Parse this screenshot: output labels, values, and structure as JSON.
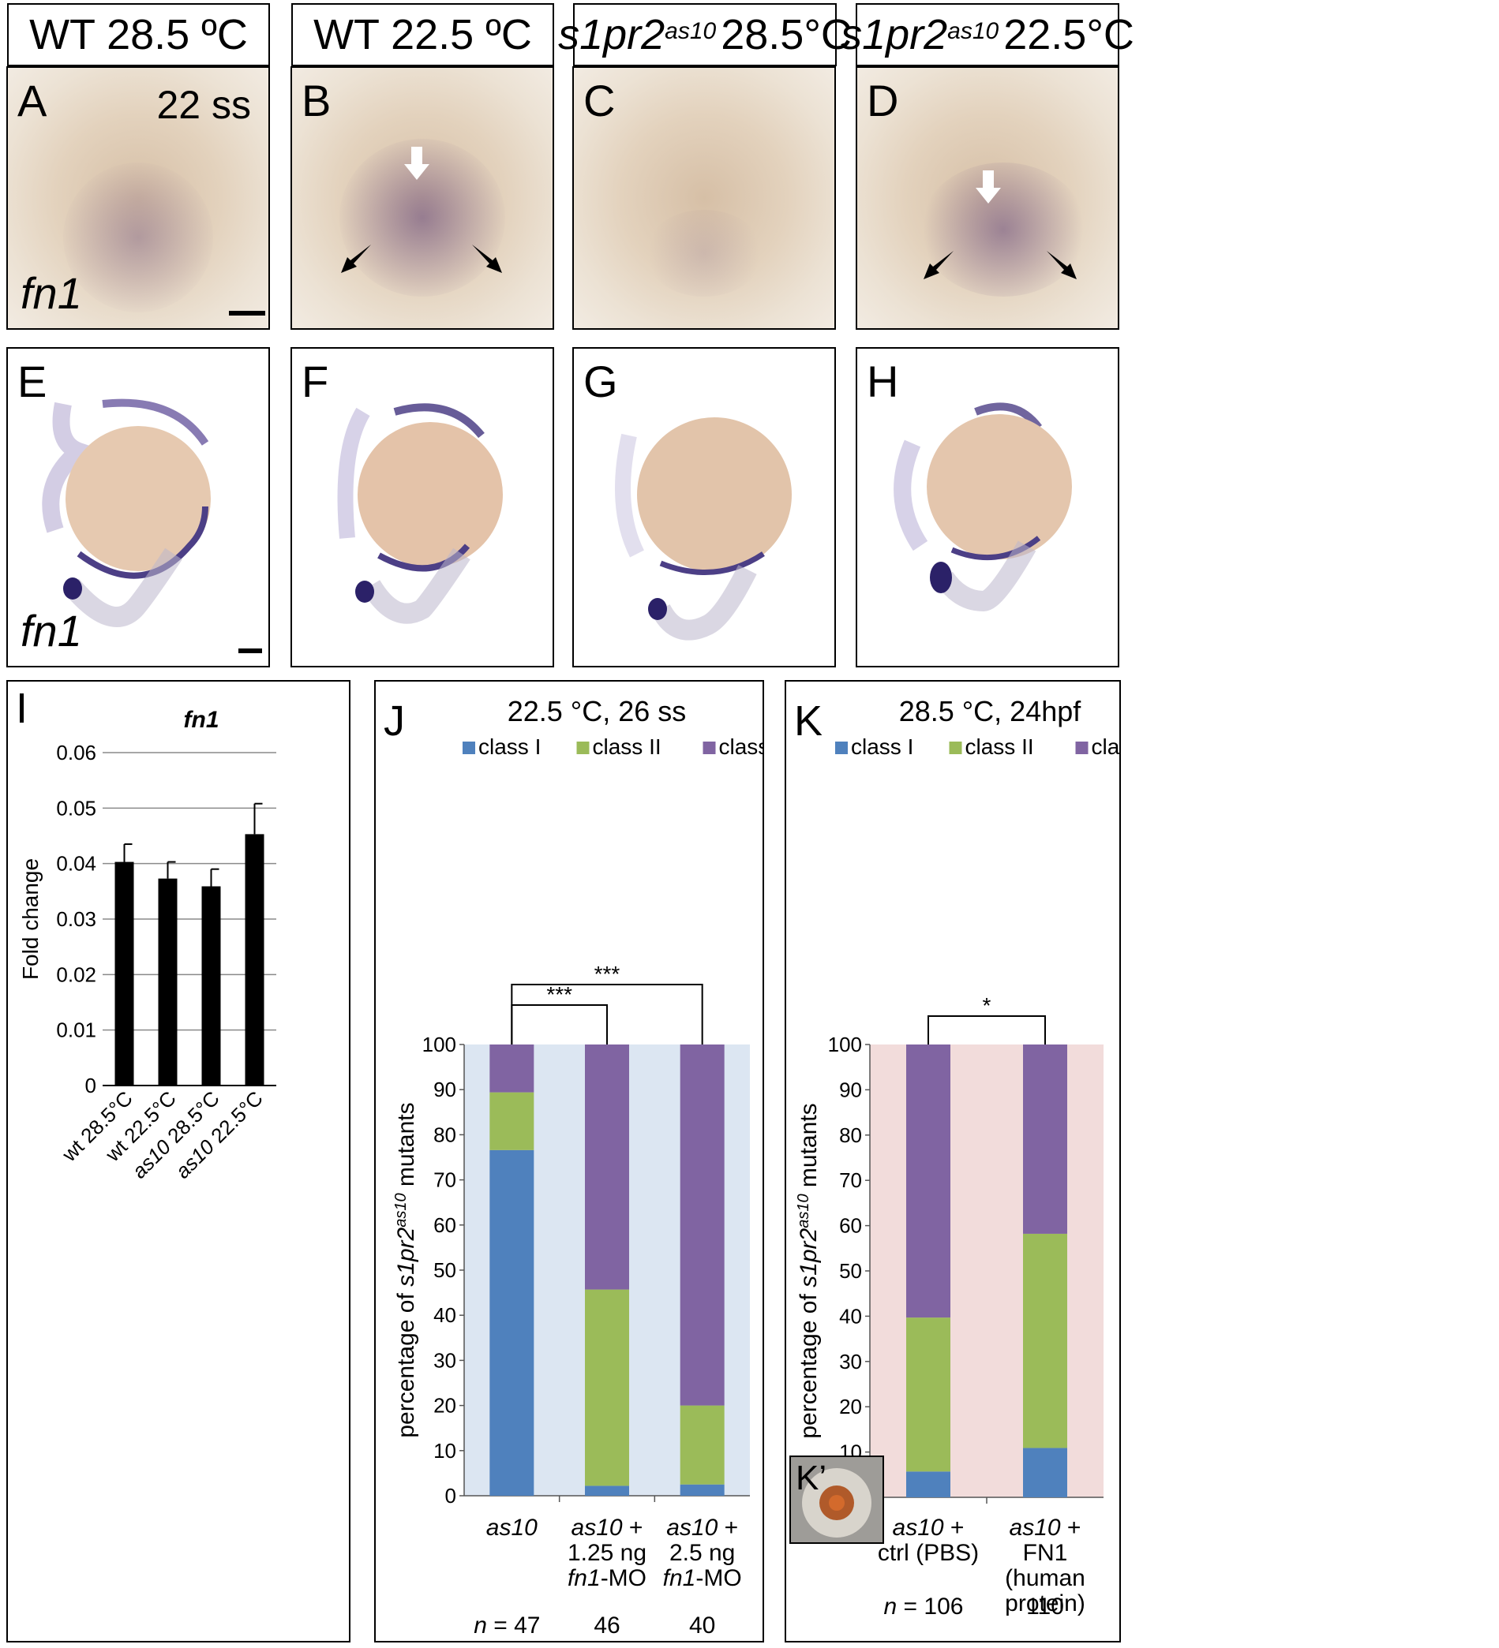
{
  "headers": [
    {
      "plain": "WT 28.5 ºC"
    },
    {
      "plain": "WT 22.5 ºC"
    },
    {
      "gene": "s1pr2",
      "allele": "as10",
      "temp": "28.5°C"
    },
    {
      "gene": "s1pr2",
      "allele": "as10",
      "temp": "22.5°C"
    }
  ],
  "top_row": {
    "labels": [
      "A",
      "B",
      "C",
      "D"
    ],
    "stage": "22 ss",
    "gene": "fn1"
  },
  "mid_row": {
    "labels": [
      "E",
      "F",
      "G",
      "H"
    ],
    "gene": "fn1"
  },
  "colors": {
    "class1": "#4f81bd",
    "class2": "#9bbb59",
    "class3": "#8064a2",
    "panelJ_bg": "#dce6f2",
    "panelK_bg": "#f2dcdb"
  },
  "chart_data": [
    {
      "panel": "I",
      "type": "bar",
      "title": "fn1",
      "ylabel": "Fold change",
      "categories": [
        "wt 28.5°C",
        "wt 22.5°C",
        "as10 28.5°C",
        "as10 22.5°C"
      ],
      "values": [
        0.0403,
        0.0373,
        0.0359,
        0.0453
      ],
      "errors": [
        0.0032,
        0.003,
        0.0031,
        0.0055
      ],
      "ylim": [
        0,
        0.06
      ],
      "yticks": [
        "0",
        "0.01",
        "0.02",
        "0.03",
        "0.04",
        "0.05",
        "0.06"
      ],
      "grid": true
    },
    {
      "panel": "J",
      "type": "bar",
      "stacked": true,
      "title": "22.5 °C, 26 ss",
      "ylabel_prefix": "percentage of ",
      "ylabel_gene": "s1pr2",
      "ylabel_sup": "as10",
      "ylabel_suffix": " mutants",
      "ylim": [
        0,
        100
      ],
      "yticks": [
        "0",
        "10",
        "20",
        "30",
        "40",
        "50",
        "60",
        "70",
        "80",
        "90",
        "100"
      ],
      "legend": [
        "class I",
        "class II",
        "class III"
      ],
      "categories": [
        {
          "lines": [
            {
              "i": "as10"
            }
          ]
        },
        {
          "lines": [
            {
              "i": "as10",
              "t": " +"
            },
            {
              "t": "1.25 ng"
            },
            {
              "i": "fn1",
              "t": "-MO"
            }
          ]
        },
        {
          "lines": [
            {
              "i": "as10",
              "t": " +"
            },
            {
              "t": "2.5 ng"
            },
            {
              "i": "fn1",
              "t": "-MO"
            }
          ]
        }
      ],
      "series": [
        {
          "name": "class I",
          "values": [
            76.6,
            2.2,
            2.5
          ]
        },
        {
          "name": "class II",
          "values": [
            12.8,
            43.5,
            17.5
          ]
        },
        {
          "name": "class III",
          "values": [
            10.6,
            54.3,
            80.0
          ]
        }
      ],
      "n_label": "n",
      "n_values": [
        "= 47",
        "46",
        "40"
      ],
      "significance": [
        "***",
        "***"
      ]
    },
    {
      "panel": "K",
      "type": "bar",
      "stacked": true,
      "title": "28.5 °C, 24hpf",
      "ylabel_prefix": "percentage of ",
      "ylabel_gene": "s1pr2",
      "ylabel_sup": "as10",
      "ylabel_suffix": " mutants",
      "ylim": [
        0,
        100
      ],
      "yticks": [
        "0",
        "10",
        "20",
        "30",
        "40",
        "50",
        "60",
        "70",
        "80",
        "90",
        "100"
      ],
      "legend": [
        "class I",
        "class II",
        "class III"
      ],
      "categories": [
        {
          "lines": [
            {
              "i": "as10",
              "t": " +"
            },
            {
              "t": "ctrl (PBS)"
            }
          ]
        },
        {
          "lines": [
            {
              "i": "as10",
              "t": " +"
            },
            {
              "t": "FN1"
            },
            {
              "t": "(human"
            },
            {
              "t": "protein)"
            }
          ]
        }
      ],
      "series": [
        {
          "name": "class I",
          "values": [
            5.7,
            10.9
          ]
        },
        {
          "name": "class II",
          "values": [
            34.0,
            47.3
          ]
        },
        {
          "name": "class III",
          "values": [
            60.3,
            41.8
          ]
        }
      ],
      "n_label": "n",
      "n_values": [
        "= 106",
        "110"
      ],
      "significance": [
        "*"
      ],
      "inset_label": "K’"
    }
  ],
  "panel_letters": {
    "I": "I",
    "J": "J",
    "K": "K"
  }
}
